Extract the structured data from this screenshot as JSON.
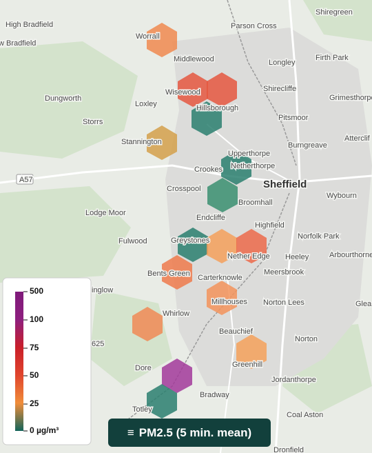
{
  "map": {
    "places": [
      "High Bradfield",
      "w Bradfield",
      "Worrall",
      "Middlewood",
      "Parson Cross",
      "Shiregreen",
      "Longley",
      "Firth Park",
      "Dungworth",
      "Loxley",
      "Wisewood",
      "Hillsborough",
      "Shirecliffe",
      "Grimesthorpe",
      "Pitsmoor",
      "Storrs",
      "Stannington",
      "Upperthorpe",
      "Burngreave",
      "Atterclif",
      "Netherthorpe",
      "Crookes",
      "Sheffield",
      "Crosspool",
      "Wybourn",
      "A57",
      "Broomhall",
      "Lodge Moor",
      "Endcliffe",
      "Highfield",
      "Norfolk Park",
      "Fulwood",
      "Greystones",
      "Nether Edge",
      "Heeley",
      "Arbourthorne",
      "Bents Green",
      "Carterknowle",
      "Meersbrook",
      "Millhouses",
      "Norton Lees",
      "Whirlow",
      "Beauchief",
      "Norton",
      "Greenhill",
      "Dore",
      "Jordanthorpe",
      "Bradway",
      "Totley",
      "Coal Aston",
      "Dronfield",
      "Glea",
      "inglow",
      "625"
    ]
  },
  "legend": {
    "ticks": [
      "500",
      "100",
      "75",
      "50",
      "25",
      "0 µg/m³"
    ]
  },
  "layer_button": {
    "label": "PM2.5 (5 min. mean)"
  }
}
